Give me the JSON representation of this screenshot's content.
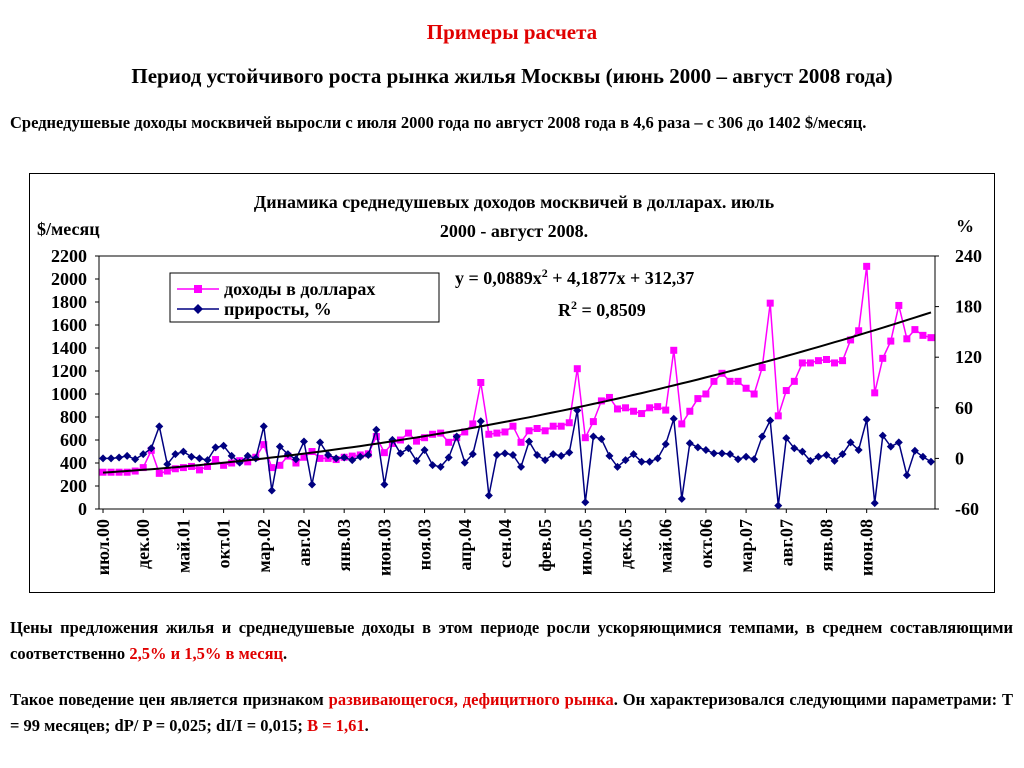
{
  "header": {
    "subtitle": "Примеры расчета",
    "title": "Период устойчивого роста рынка жилья Москвы (июнь 2000 – август 2008 года)"
  },
  "intro": "Среднедушевые доходы москвичей выросли с июля 2000 года по август 2008 года в 4,6 раза – с 306 до 1402 $/месяц.",
  "paragraph1": {
    "text_before": "Цены предложения жилья и среднедушевые доходы в этом периоде росли ускоряющимися темпами, в среднем составляющими соответственно ",
    "highlight": "2,5% и 1,5% в месяц",
    "text_after": "."
  },
  "paragraph2": {
    "text_before": "Такое поведение цен является признаком ",
    "highlight1": "развивающегося, дефицитного рынка",
    "text_middle": ". Он характеризовался следующими параметрами: Т = 99 месяцев;  dP/ P = 0,025; dI/I = 0,015; ",
    "highlight2": "В = 1,61",
    "text_after": "."
  },
  "colors": {
    "title_red": "#e00000",
    "income_series": "#ff00ff",
    "growth_series": "#000080",
    "trend_line": "#000000"
  },
  "chart_data": {
    "type": "line",
    "title_line1": "Динамика среднедушевых доходов москвичей в долларах. июль",
    "title_line2": "2000 - август 2008.",
    "ylabel_left": "$/месяц",
    "ylabel_right": "%",
    "ylim_left": [
      0,
      2200
    ],
    "ylim_right": [
      -60,
      240
    ],
    "yticks_left": [
      "2200",
      "2000",
      "1800",
      "1600",
      "1400",
      "1200",
      "1000",
      "800",
      "600",
      "400",
      "200",
      "0"
    ],
    "yticks_right": [
      "240",
      "180",
      "120",
      "60",
      "0",
      "-60"
    ],
    "xtick_labels": [
      "июл.00",
      "дек.00",
      "май.01",
      "окт.01",
      "мар.02",
      "авг.02",
      "янв.03",
      "июн.03",
      "ноя.03",
      "апр.04",
      "сен.04",
      "фев.05",
      "июл.05",
      "дек.05",
      "май.06",
      "окт.06",
      "мар.07",
      "авг.07",
      "янв.08",
      "июн.08"
    ],
    "x_start": "2000-07",
    "x_end": "2008-08",
    "equation": "y = 0,0889x",
    "equation_exp": "2",
    "equation_rest": " + 4,1877x + 312,37",
    "r2_label": "R",
    "r2_exp": "2",
    "r2_rest": " = 0,8509",
    "trend": {
      "a": 0.0889,
      "b": 4.1877,
      "c": 312.37
    },
    "series": [
      {
        "name": "доходы в долларах",
        "axis": "left",
        "marker": "square",
        "values": [
          320,
          320,
          320,
          320,
          330,
          360,
          510,
          310,
          330,
          350,
          360,
          370,
          340,
          370,
          430,
          380,
          400,
          420,
          410,
          450,
          560,
          360,
          380,
          460,
          400,
          450,
          500,
          440,
          440,
          430,
          450,
          460,
          470,
          480,
          630,
          490,
          570,
          600,
          660,
          590,
          620,
          650,
          660,
          580,
          620,
          670,
          740,
          1100,
          650,
          660,
          670,
          720,
          580,
          680,
          700,
          680,
          720,
          720,
          750,
          1220,
          620,
          760,
          940,
          970,
          870,
          880,
          850,
          830,
          880,
          890,
          860,
          1380,
          740,
          850,
          960,
          1000,
          1110,
          1180,
          1110,
          1110,
          1050,
          1000,
          1230,
          1790,
          810,
          1030,
          1110,
          1270,
          1270,
          1290,
          1300,
          1270,
          1290,
          1470,
          1550,
          2110,
          1010,
          1310,
          1460,
          1770,
          1480,
          1560,
          1510,
          1490
        ]
      },
      {
        "name": "приросты, %",
        "axis": "right",
        "marker": "diamond",
        "values": [
          0,
          0,
          1,
          3,
          -1,
          5,
          12,
          38,
          -7,
          5,
          8,
          2,
          0,
          -2,
          13,
          15,
          3,
          -5,
          3,
          0,
          38,
          -38,
          14,
          5,
          -1,
          20,
          -31,
          19,
          4,
          0,
          1,
          -2,
          2,
          4,
          34,
          -31,
          22,
          6,
          12,
          -3,
          10,
          -8,
          -10,
          1,
          26,
          -5,
          5,
          44,
          -44,
          4,
          6,
          4,
          -10,
          20,
          4,
          -2,
          5,
          3,
          7,
          57,
          -52,
          26,
          23,
          3,
          -10,
          -2,
          5,
          -4,
          -4,
          0,
          17,
          47,
          -48,
          18,
          13,
          10,
          6,
          6,
          5,
          -1,
          2,
          -1,
          26,
          45,
          -56,
          24,
          12,
          8,
          -3,
          2,
          4,
          -3,
          5,
          19,
          10,
          46,
          -53,
          27,
          14,
          19,
          -20,
          9,
          2,
          -4
        ]
      }
    ]
  }
}
